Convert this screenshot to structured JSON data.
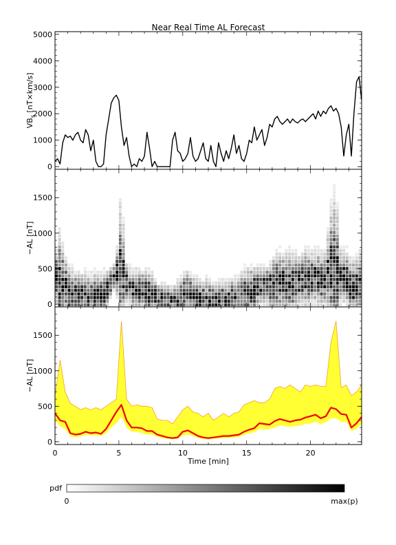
{
  "figure": {
    "title": "Near Real Time AL Forecast",
    "colorbar": {
      "label": "pdf",
      "min_label": "0",
      "max_label": "max(p)",
      "from_color": "#ffffff",
      "to_color": "#000000"
    }
  },
  "chart_data": [
    {
      "type": "line",
      "panel": "top",
      "ylabel_parts": [
        "VB",
        "s",
        " [nT×km/s]"
      ],
      "ylim": [
        -100,
        5100
      ],
      "yticks": [
        0,
        1000,
        2000,
        3000,
        4000,
        5000
      ],
      "xlim": [
        0,
        24
      ],
      "line_color": "#000000",
      "x": [
        0,
        0.2,
        0.4,
        0.6,
        0.8,
        1.0,
        1.2,
        1.4,
        1.6,
        1.8,
        2.0,
        2.2,
        2.4,
        2.6,
        2.8,
        3.0,
        3.2,
        3.4,
        3.6,
        3.8,
        4.0,
        4.2,
        4.4,
        4.6,
        4.8,
        5.0,
        5.2,
        5.4,
        5.6,
        5.8,
        6.0,
        6.2,
        6.4,
        6.6,
        6.8,
        7.0,
        7.2,
        7.4,
        7.6,
        7.8,
        8.0,
        8.2,
        8.4,
        8.6,
        8.8,
        9.0,
        9.2,
        9.4,
        9.6,
        9.8,
        10.0,
        10.2,
        10.4,
        10.6,
        10.8,
        11.0,
        11.2,
        11.4,
        11.6,
        11.8,
        12.0,
        12.2,
        12.4,
        12.6,
        12.8,
        13.0,
        13.2,
        13.4,
        13.6,
        13.8,
        14.0,
        14.2,
        14.4,
        14.6,
        14.8,
        15.0,
        15.2,
        15.4,
        15.6,
        15.8,
        16.0,
        16.2,
        16.4,
        16.6,
        16.8,
        17.0,
        17.2,
        17.4,
        17.6,
        17.8,
        18.0,
        18.2,
        18.4,
        18.6,
        18.8,
        19.0,
        19.2,
        19.4,
        19.6,
        19.8,
        20.0,
        20.2,
        20.4,
        20.6,
        20.8,
        21.0,
        21.2,
        21.4,
        21.6,
        21.8,
        22.0,
        22.2,
        22.4,
        22.6,
        22.8,
        23.0,
        23.2,
        23.4,
        23.6,
        23.8,
        24.0
      ],
      "y": [
        200,
        300,
        100,
        900,
        1200,
        1100,
        1150,
        1000,
        1200,
        1300,
        1000,
        900,
        1400,
        1200,
        600,
        1000,
        200,
        0,
        0,
        100,
        1200,
        1800,
        2400,
        2600,
        2700,
        2500,
        1500,
        800,
        1100,
        400,
        0,
        100,
        0,
        300,
        200,
        400,
        1300,
        700,
        0,
        200,
        0,
        0,
        0,
        0,
        0,
        0,
        1000,
        1300,
        600,
        500,
        200,
        300,
        500,
        1100,
        400,
        200,
        300,
        600,
        900,
        300,
        200,
        800,
        200,
        0,
        900,
        500,
        200,
        600,
        300,
        700,
        1200,
        500,
        800,
        300,
        200,
        500,
        1000,
        900,
        1500,
        1000,
        1200,
        1400,
        800,
        1100,
        1600,
        1500,
        1800,
        1900,
        1700,
        1600,
        1700,
        1800,
        1650,
        1800,
        1700,
        1650,
        1750,
        1800,
        1700,
        1800,
        1900,
        2000,
        1800,
        2100,
        1900,
        2100,
        2000,
        2200,
        2300,
        2100,
        2200,
        2000,
        1500,
        400,
        1200,
        1600,
        400,
        2000,
        3200,
        3400,
        2500
      ]
    },
    {
      "type": "heatmap",
      "panel": "middle",
      "ylabel": "−AL [nT]",
      "ylim": [
        -40,
        1900
      ],
      "yticks": [
        0,
        500,
        1000,
        1500
      ],
      "xlim": [
        0,
        24
      ],
      "color_scale": "white-to-black probability density"
    },
    {
      "type": "area",
      "panel": "bottom",
      "ylabel": "−AL [nT]",
      "ylim": [
        -40,
        1900
      ],
      "yticks": [
        0,
        500,
        1000,
        1500
      ],
      "xlabel": "Time [min]",
      "xlim": [
        0,
        24
      ],
      "xticks": [
        0,
        5,
        10,
        15,
        20
      ],
      "band_fill": "#ffff33",
      "band_edge": "#f0a030",
      "line_color": "#ee0000",
      "x": [
        0,
        0.4,
        0.8,
        1.2,
        1.6,
        2.0,
        2.4,
        2.8,
        3.2,
        3.6,
        4.0,
        4.4,
        4.8,
        5.2,
        5.6,
        6.0,
        6.4,
        6.8,
        7.2,
        7.6,
        8.0,
        8.4,
        8.8,
        9.2,
        9.6,
        10.0,
        10.4,
        10.8,
        11.2,
        11.6,
        12.0,
        12.4,
        12.8,
        13.2,
        13.6,
        14.0,
        14.4,
        14.8,
        15.2,
        15.6,
        16.0,
        16.4,
        16.8,
        17.2,
        17.6,
        18.0,
        18.4,
        18.8,
        19.2,
        19.6,
        20.0,
        20.4,
        20.8,
        21.2,
        21.6,
        22.0,
        22.4,
        22.8,
        23.2,
        23.6,
        24.0
      ],
      "median": [
        400,
        300,
        280,
        120,
        100,
        110,
        140,
        120,
        130,
        110,
        180,
        300,
        420,
        520,
        300,
        200,
        200,
        190,
        150,
        150,
        100,
        80,
        60,
        50,
        60,
        140,
        160,
        120,
        80,
        60,
        50,
        60,
        70,
        80,
        80,
        90,
        100,
        140,
        170,
        190,
        260,
        250,
        240,
        290,
        320,
        300,
        280,
        300,
        310,
        340,
        360,
        380,
        330,
        360,
        480,
        460,
        390,
        380,
        200,
        260,
        350
      ],
      "upper": [
        650,
        1150,
        700,
        540,
        500,
        450,
        480,
        450,
        480,
        450,
        500,
        550,
        600,
        1700,
        600,
        500,
        520,
        500,
        500,
        480,
        320,
        300,
        300,
        250,
        350,
        450,
        500,
        420,
        400,
        350,
        400,
        300,
        350,
        400,
        350,
        400,
        420,
        520,
        550,
        580,
        550,
        550,
        600,
        750,
        780,
        750,
        800,
        750,
        700,
        800,
        780,
        800,
        780,
        780,
        1400,
        1700,
        760,
        800,
        650,
        700,
        800
      ],
      "lower": [
        300,
        220,
        180,
        80,
        60,
        70,
        100,
        90,
        90,
        80,
        120,
        200,
        260,
        350,
        200,
        140,
        140,
        120,
        100,
        100,
        70,
        50,
        40,
        35,
        40,
        90,
        100,
        80,
        50,
        40,
        30,
        40,
        45,
        50,
        50,
        60,
        70,
        100,
        120,
        130,
        180,
        170,
        180,
        200,
        230,
        220,
        210,
        220,
        230,
        250,
        260,
        280,
        250,
        270,
        330,
        330,
        280,
        280,
        150,
        180,
        250
      ]
    }
  ]
}
